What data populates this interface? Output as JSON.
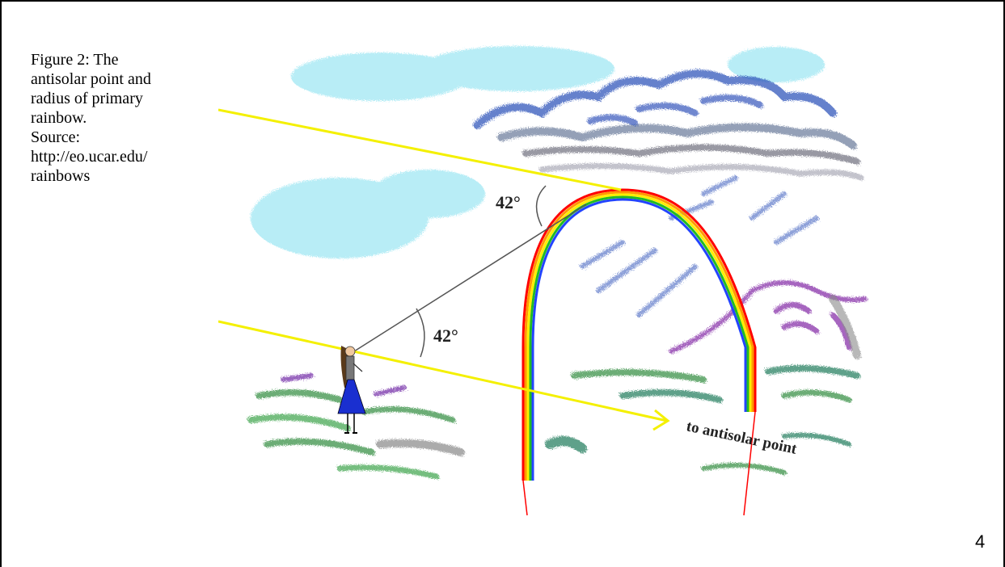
{
  "caption": {
    "lines": [
      "Figure 2:  The",
      "antisolar point and",
      "radius of primary",
      "rainbow.",
      "Source:",
      "http://eo.ucar.edu/",
      "rainbows"
    ]
  },
  "illustration": {
    "angle_upper": "42°",
    "angle_lower": "42°",
    "antisolar_label": "to antisolar point"
  },
  "page_number": "4",
  "colors": {
    "sun_ray": "#f4f000",
    "sight_line": "#555555",
    "rainbow_bands": [
      "#ff0000",
      "#ff9900",
      "#ffee00",
      "#22bb22",
      "#2244ff"
    ],
    "clouds_light": "#7fe0f0",
    "clouds_dark": "#3355bb",
    "grass": "#2e8b3e",
    "mountain": "#8833aa",
    "dress": "#1a2fd0"
  }
}
